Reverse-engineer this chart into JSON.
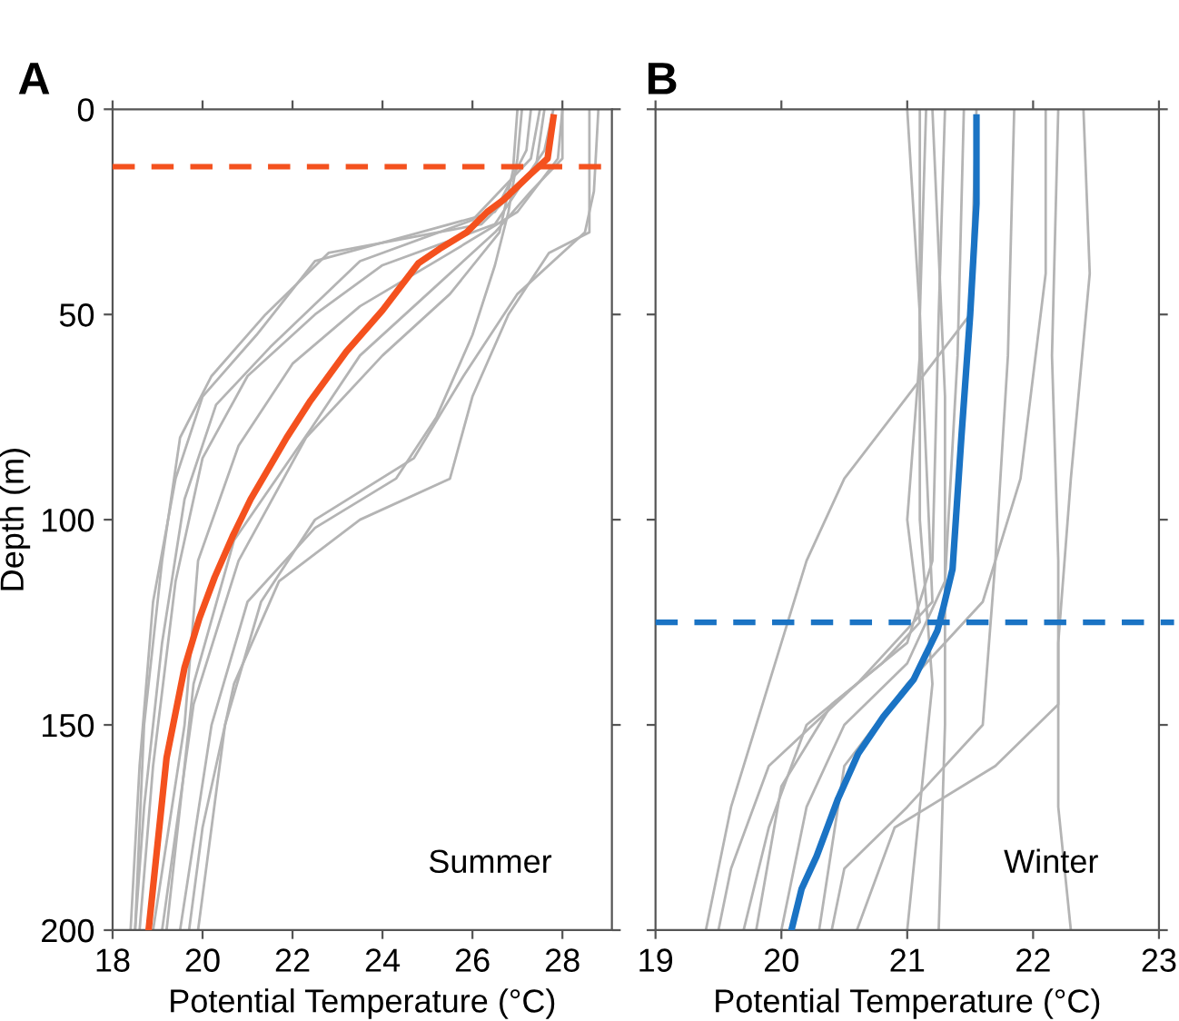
{
  "chart_data": [
    {
      "type": "line",
      "title": "A",
      "xlabel": "Potential Temperature (°C)",
      "ylabel": "Depth (m)",
      "xlim": [
        18,
        29.1
      ],
      "xticks": [
        18,
        20,
        22,
        24,
        26,
        28
      ],
      "ylim": [
        200,
        0
      ],
      "yticks": [
        0,
        50,
        100,
        150,
        200
      ],
      "annotations": [
        "Summer"
      ],
      "grid": false,
      "legend": false,
      "marker": "none",
      "line_style": "solid",
      "ref_lines": [
        {
          "axis": "y",
          "value": 14,
          "color": "#f4511e",
          "line_style": "dashed"
        }
      ],
      "series": [
        {
          "color": "#b4b4b4",
          "x": [
            27.3,
            27.2,
            26.5,
            22.5,
            21.2,
            20,
            19.4,
            18.9,
            18.6,
            18.4
          ],
          "values": [
            0,
            10,
            25,
            37,
            55,
            70,
            90,
            120,
            160,
            200
          ]
        },
        {
          "color": "#b4b4b4",
          "x": [
            27.5,
            27.3,
            26,
            23.5,
            21.5,
            20.3,
            19.6,
            19.1,
            18.7,
            18.5
          ],
          "values": [
            0,
            12,
            27,
            37,
            58,
            72,
            95,
            130,
            170,
            200
          ]
        },
        {
          "color": "#b4b4b4",
          "x": [
            27.8,
            27.6,
            26.5,
            24,
            22.5,
            21,
            20,
            19.4,
            18.9,
            18.6
          ],
          "values": [
            0,
            10,
            28,
            38,
            50,
            65,
            85,
            115,
            160,
            200
          ]
        },
        {
          "color": "#b4b4b4",
          "x": [
            28.0,
            27.9,
            27,
            25.5,
            23.5,
            22,
            20.8,
            19.9,
            19.6,
            18.9
          ],
          "values": [
            0,
            12,
            25,
            35,
            48,
            62,
            82,
            110,
            150,
            200
          ]
        },
        {
          "color": "#b4b4b4",
          "x": [
            28.0,
            28.0,
            27.3,
            26.5,
            25,
            23.5,
            22.4,
            20.7,
            19.8,
            19.2
          ],
          "values": [
            0,
            12,
            20,
            30,
            45,
            60,
            78,
            105,
            140,
            200
          ]
        },
        {
          "color": "#b4b4b4",
          "x": [
            27.1,
            27.0,
            26.8,
            26.5,
            26,
            25.2,
            24.3,
            22.5,
            21,
            20.2,
            19.5
          ],
          "values": [
            0,
            12,
            25,
            38,
            55,
            75,
            90,
            102,
            120,
            150,
            200
          ]
        },
        {
          "color": "#b4b4b4",
          "x": [
            28.6,
            28.6,
            27.7,
            26.8,
            26,
            25.5,
            23.5,
            21.7,
            20.7,
            20,
            19.7
          ],
          "values": [
            0,
            30,
            35,
            50,
            70,
            90,
            100,
            115,
            140,
            175,
            200
          ]
        },
        {
          "color": "#b4b4b4",
          "x": [
            28.8,
            28.7,
            28.5,
            27,
            25.8,
            24.7,
            22.5,
            21.3,
            20.5,
            19.9
          ],
          "values": [
            0,
            20,
            30,
            45,
            65,
            85,
            100,
            120,
            150,
            200
          ]
        },
        {
          "color": "#b4b4b4",
          "x": [
            27.0,
            26.9,
            26.6,
            25.5,
            24,
            22.3,
            20.8,
            19.8,
            19.1
          ],
          "values": [
            0,
            15,
            30,
            45,
            60,
            80,
            110,
            145,
            200
          ]
        },
        {
          "color": "#b4b4b4",
          "x": [
            27.6,
            27.4,
            26.2,
            22.8,
            21.4,
            20.2,
            19.5,
            19.1,
            18.7,
            18.5
          ],
          "values": [
            0,
            15,
            28,
            35,
            50,
            65,
            80,
            110,
            150,
            200
          ]
        },
        {
          "color": "#f4511e",
          "x": [
            27.8,
            27.67,
            27.27,
            26.7,
            26.33,
            25.87,
            25.27,
            24.8,
            24.0,
            23.2,
            22.4,
            21.87,
            21.07,
            20.67,
            20.27,
            19.93,
            19.6,
            19.2,
            19.0,
            18.8
          ],
          "values": [
            2,
            12,
            16,
            22,
            25,
            30,
            34,
            37.5,
            49,
            59,
            71,
            80,
            95,
            104,
            114,
            124,
            136,
            158,
            179,
            200
          ]
        }
      ]
    },
    {
      "type": "line",
      "title": "B",
      "xlabel": "Potential Temperature (°C)",
      "xlim": [
        19,
        23
      ],
      "xticks": [
        19,
        20,
        21,
        22,
        23
      ],
      "ylim": [
        200,
        0
      ],
      "yticks": [
        {
          "value": 0,
          "label": null
        },
        {
          "value": 50,
          "label": null
        },
        {
          "value": 100,
          "label": null
        },
        {
          "value": 150,
          "label": null
        },
        {
          "value": 200,
          "label": null
        }
      ],
      "tick_labels": "x",
      "annotations": [
        "Winter"
      ],
      "grid": false,
      "legend": false,
      "marker": "none",
      "line_style": "solid",
      "ref_lines": [
        {
          "axis": "y",
          "value": 125,
          "color": "#1a73c4",
          "line_style": "dashed"
        }
      ],
      "series": [
        {
          "color": "#b4b4b4",
          "x": [
            21.1,
            21.1,
            21.0,
            21.1,
            20.8,
            20.2,
            19.9,
            19.7
          ],
          "values": [
            0,
            60,
            100,
            125,
            135,
            150,
            175,
            200
          ]
        },
        {
          "color": "#b4b4b4",
          "x": [
            21.3,
            21.25,
            21.2,
            21.0,
            20.4,
            20.0,
            19.8
          ],
          "values": [
            0,
            50,
            110,
            130,
            145,
            165,
            200
          ]
        },
        {
          "color": "#b4b4b4",
          "x": [
            21.45,
            21.4,
            21.3,
            21.0,
            20.5,
            20.2,
            20.0
          ],
          "values": [
            0,
            60,
            115,
            135,
            150,
            170,
            200
          ]
        },
        {
          "color": "#b4b4b4",
          "x": [
            22.1,
            22.1,
            21.9,
            21.6,
            21.0,
            20.5,
            20.3
          ],
          "values": [
            0,
            40,
            90,
            120,
            140,
            160,
            200
          ]
        },
        {
          "color": "#b4b4b4",
          "x": [
            22.2,
            22.15,
            22.2,
            22.2,
            21.7,
            20.9,
            20.6
          ],
          "values": [
            0,
            60,
            110,
            145,
            160,
            175,
            200
          ]
        },
        {
          "color": "#b4b4b4",
          "x": [
            22.4,
            22.45,
            22.3,
            22.2,
            22.2,
            22.2,
            22.3
          ],
          "values": [
            0,
            40,
            90,
            130,
            150,
            170,
            200
          ]
        },
        {
          "color": "#b4b4b4",
          "x": [
            21.55,
            21.5,
            21.0,
            20.5,
            20.2,
            19.9,
            19.6,
            19.4
          ],
          "values": [
            0,
            50,
            70,
            90,
            110,
            140,
            170,
            200
          ]
        },
        {
          "color": "#b4b4b4",
          "x": [
            21.0,
            21.1,
            21.1,
            21.2,
            21.1,
            21.0
          ],
          "values": [
            0,
            50,
            100,
            140,
            170,
            200
          ]
        },
        {
          "color": "#b4b4b4",
          "x": [
            21.2,
            21.3,
            21.3,
            21.3,
            21.25
          ],
          "values": [
            0,
            70,
            120,
            150,
            200
          ]
        },
        {
          "color": "#b4b4b4",
          "x": [
            21.85,
            21.8,
            21.7,
            21.6,
            21.0,
            20.5,
            20.4
          ],
          "values": [
            0,
            60,
            110,
            150,
            170,
            185,
            200
          ]
        },
        {
          "color": "#b4b4b4",
          "x": [
            21.15,
            21.1,
            21.2,
            20.6,
            19.9,
            19.6,
            19.5
          ],
          "values": [
            0,
            50,
            120,
            140,
            160,
            185,
            200
          ]
        },
        {
          "color": "#1a73c4",
          "x": [
            21.55,
            21.55,
            21.5,
            21.43,
            21.36,
            21.29,
            21.24,
            21.05,
            20.81,
            20.61,
            20.45,
            20.28,
            20.16,
            20.08
          ],
          "values": [
            2,
            23,
            50,
            80,
            112,
            121,
            127,
            139,
            148,
            157,
            168,
            182,
            190,
            200
          ]
        }
      ]
    }
  ]
}
